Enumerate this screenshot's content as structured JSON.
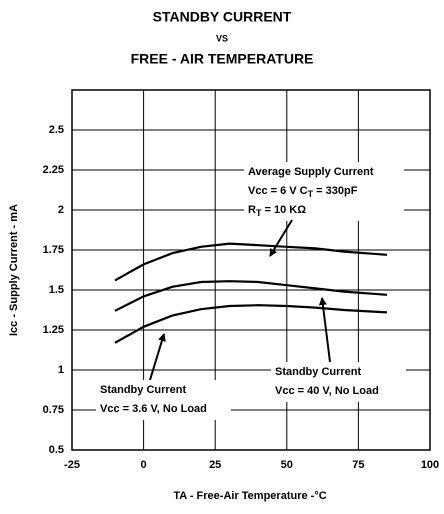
{
  "chart_data": {
    "type": "line",
    "title": [
      "STANDBY CURRENT",
      "VS",
      "FREE - AIR TEMPERATURE"
    ],
    "x_label": "TA - Free-Air Temperature -°C",
    "y_label": "Icc - Supply Current - mA",
    "x": [
      -10,
      0,
      10,
      20,
      30,
      40,
      50,
      60,
      70,
      85
    ],
    "series": [
      {
        "color": "#000000",
        "values": [
          1.56,
          1.66,
          1.73,
          1.77,
          1.79,
          1.78,
          1.77,
          1.76,
          1.74,
          1.72
        ]
      },
      {
        "color": "#000000",
        "values": [
          1.37,
          1.46,
          1.52,
          1.55,
          1.555,
          1.55,
          1.53,
          1.51,
          1.49,
          1.47
        ]
      },
      {
        "color": "#000000",
        "values": [
          1.17,
          1.27,
          1.34,
          1.38,
          1.4,
          1.405,
          1.4,
          1.39,
          1.375,
          1.36
        ]
      }
    ],
    "xlim": [
      -25,
      100
    ],
    "xticks": [
      -25,
      0,
      25,
      50,
      75,
      100
    ],
    "ylim": [
      0.5,
      2.75
    ],
    "yticks": [
      0.5,
      0.75,
      1,
      1.25,
      1.5,
      1.75,
      2,
      2.25,
      2.5
    ],
    "grid": true,
    "annotations": [
      {
        "lines": [
          [
            {
              "text": "Average Supply Current"
            }
          ],
          [
            {
              "text": "Vcc = 6 V    C"
            },
            {
              "text": "T",
              "sub": true
            },
            {
              "text": " = 330pF"
            }
          ],
          [
            {
              "text": "R"
            },
            {
              "text": "T",
              "sub": true
            },
            {
              "text": " = 10 KΩ"
            }
          ]
        ]
      },
      {
        "lines": [
          [
            {
              "text": "Standby Current"
            }
          ],
          [
            {
              "text": "Vcc = 40 V, No Load"
            }
          ]
        ]
      },
      {
        "lines": [
          [
            {
              "text": "Standby Current"
            }
          ],
          [
            {
              "text": "Vcc = 3.6 V, No Load"
            }
          ]
        ]
      }
    ]
  }
}
